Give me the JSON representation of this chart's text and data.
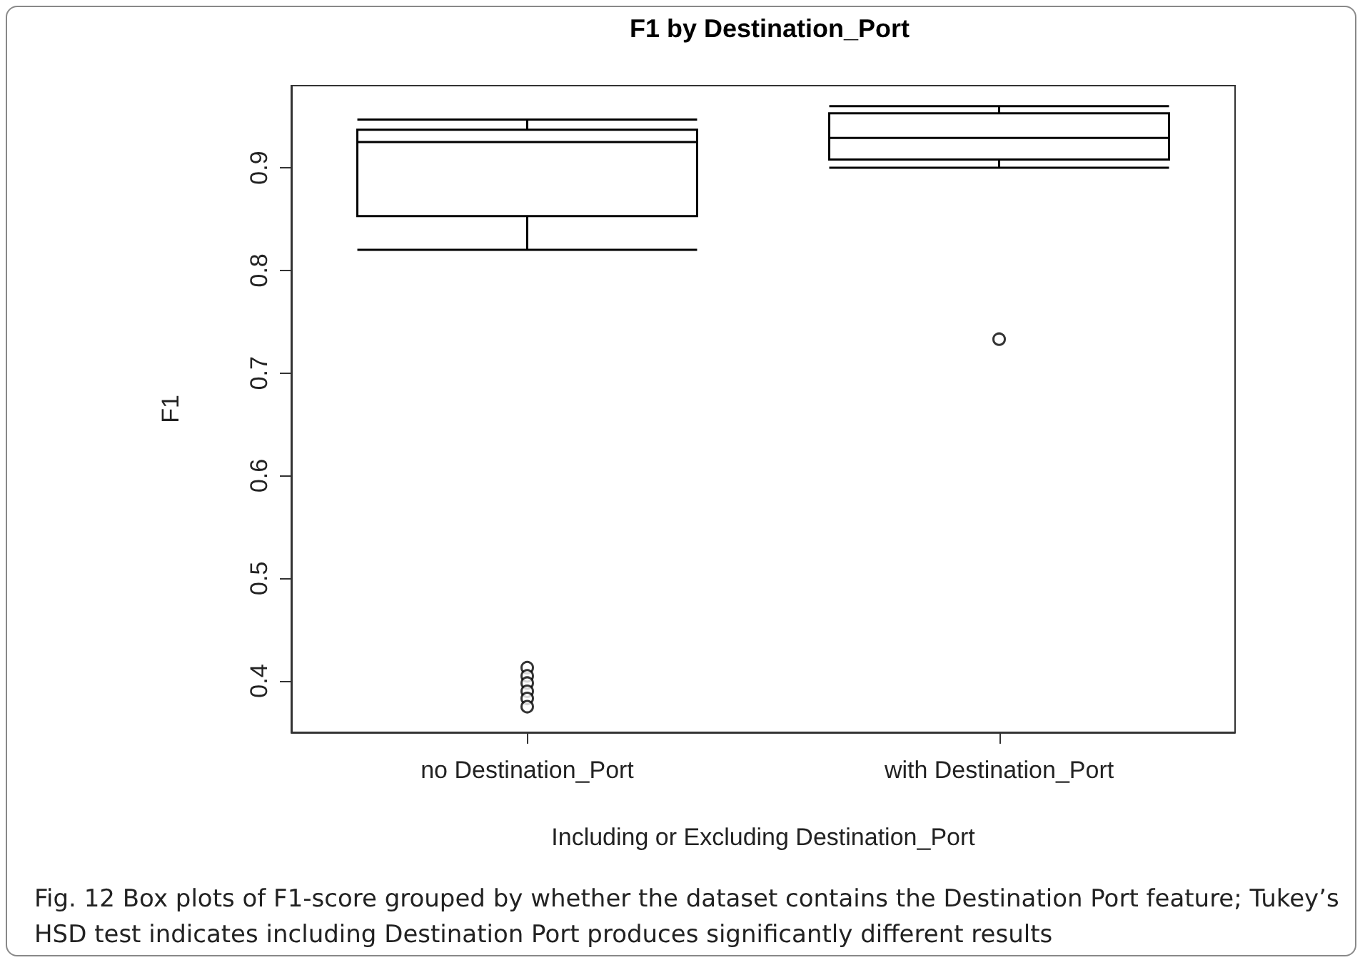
{
  "chart_data": {
    "type": "box",
    "title": "F1 by Destination_Port",
    "xlabel": "Including or Excluding Destination_Port",
    "ylabel": "F1",
    "categories": [
      "no Destination_Port",
      "with Destination_Port"
    ],
    "boxes": [
      {
        "low": 0.82,
        "q1": 0.853,
        "median": 0.925,
        "q3": 0.937,
        "high": 0.947,
        "outliers": [
          0.413,
          0.405,
          0.398,
          0.39,
          0.383,
          0.375
        ]
      },
      {
        "low": 0.9,
        "q1": 0.908,
        "median": 0.929,
        "q3": 0.953,
        "high": 0.96,
        "outliers": [
          0.733
        ]
      }
    ],
    "color": "#000000",
    "ylim": [
      0.35,
      0.98
    ],
    "yticks": [
      0.4,
      0.5,
      0.6,
      0.7,
      0.8,
      0.9
    ],
    "grid": false,
    "annotations": [
      "Fig. 12  Box plots of F1-score grouped by whether the dataset contains the Destination Port feature; Tukey’s HSD test indicates including Destination Port produces significantly different results"
    ]
  }
}
